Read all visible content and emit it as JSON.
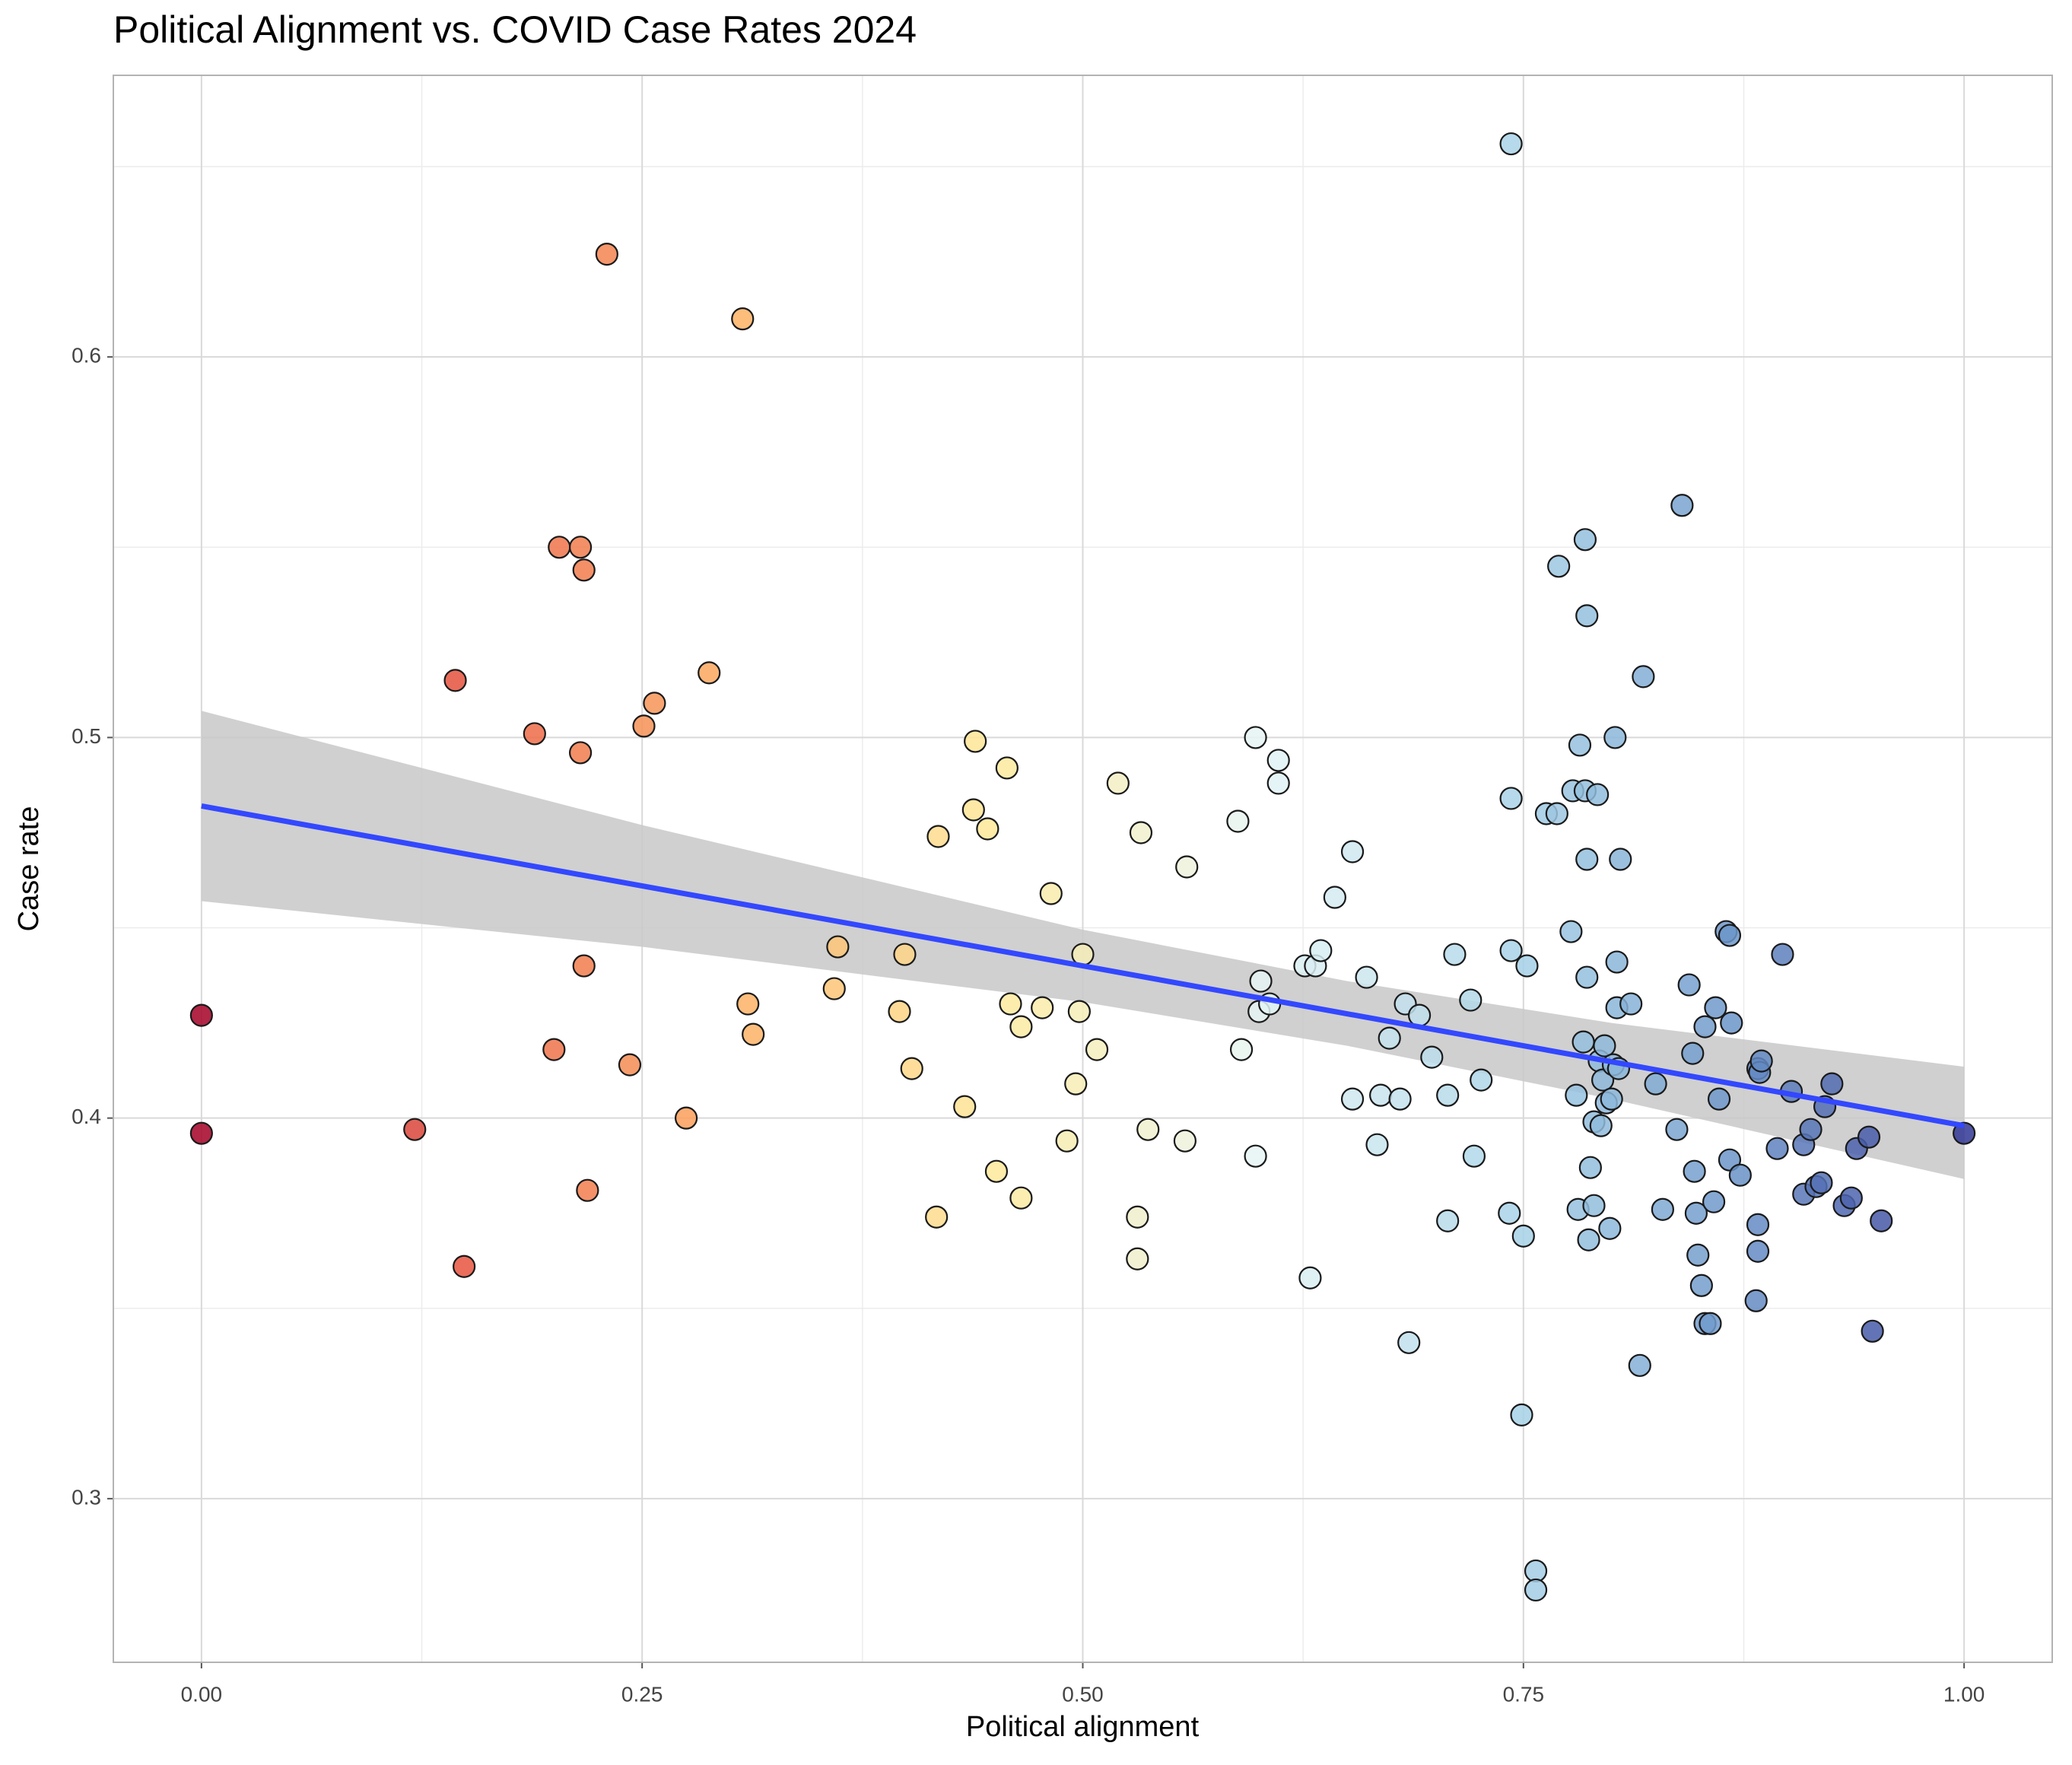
{
  "chart_data": {
    "type": "scatter",
    "title": "Political Alignment vs. COVID Case Rates 2024",
    "xlabel": "Political alignment",
    "ylabel": "Case rate",
    "x": [
      0,
      0,
      0.121,
      0.144,
      0.149,
      0.189,
      0.2,
      0.203,
      0.215,
      0.215,
      0.217,
      0.217,
      0.219,
      0.23,
      0.243,
      0.251,
      0.257,
      0.275,
      0.288,
      0.307,
      0.31,
      0.313,
      0.359,
      0.361,
      0.396,
      0.399,
      0.403,
      0.417,
      0.418,
      0.433,
      0.438,
      0.439,
      0.446,
      0.451,
      0.457,
      0.459,
      0.465,
      0.465,
      0.477,
      0.482,
      0.491,
      0.496,
      0.498,
      0.5,
      0.508,
      0.52,
      0.531,
      0.531,
      0.533,
      0.537,
      0.558,
      0.559,
      0.588,
      0.59,
      0.598,
      0.598,
      0.6,
      0.601,
      0.606,
      0.611,
      0.611,
      0.626,
      0.629,
      0.632,
      0.635,
      0.643,
      0.653,
      0.653,
      0.661,
      0.667,
      0.669,
      0.674,
      0.68,
      0.683,
      0.685,
      0.691,
      0.698,
      0.707,
      0.707,
      0.711,
      0.72,
      0.722,
      0.726,
      0.742,
      0.743,
      0.743,
      0.743,
      0.749,
      0.75,
      0.752,
      0.757,
      0.757,
      0.763,
      0.769,
      0.77,
      0.777,
      0.778,
      0.78,
      0.781,
      0.782,
      0.784,
      0.785,
      0.785,
      0.786,
      0.786,
      0.786,
      0.787,
      0.788,
      0.79,
      0.79,
      0.792,
      0.793,
      0.794,
      0.795,
      0.796,
      0.797,
      0.799,
      0.8,
      0.801,
      0.802,
      0.803,
      0.803,
      0.804,
      0.805,
      0.811,
      0.816,
      0.818,
      0.825,
      0.829,
      0.837,
      0.84,
      0.844,
      0.846,
      0.847,
      0.848,
      0.849,
      0.851,
      0.853,
      0.853,
      0.856,
      0.858,
      0.859,
      0.861,
      0.865,
      0.867,
      0.867,
      0.868,
      0.873,
      0.882,
      0.883,
      0.883,
      0.883,
      0.884,
      0.885,
      0.894,
      0.897,
      0.902,
      0.909,
      0.909,
      0.913,
      0.916,
      0.919,
      0.921,
      0.925,
      0.932,
      0.936,
      0.939,
      0.946,
      0.948,
      0.953,
      1.0
    ],
    "values": [
      0.427,
      0.396,
      0.397,
      0.515,
      0.361,
      0.501,
      0.418,
      0.55,
      0.55,
      0.496,
      0.544,
      0.44,
      0.381,
      0.627,
      0.414,
      0.503,
      0.509,
      0.4,
      0.517,
      0.61,
      0.43,
      0.422,
      0.434,
      0.445,
      0.428,
      0.443,
      0.413,
      0.374,
      0.474,
      0.403,
      0.481,
      0.499,
      0.476,
      0.386,
      0.492,
      0.43,
      0.379,
      0.424,
      0.429,
      0.459,
      0.394,
      0.409,
      0.428,
      0.443,
      0.418,
      0.488,
      0.363,
      0.374,
      0.475,
      0.397,
      0.394,
      0.466,
      0.478,
      0.418,
      0.5,
      0.39,
      0.428,
      0.436,
      0.43,
      0.494,
      0.488,
      0.44,
      0.358,
      0.44,
      0.444,
      0.458,
      0.47,
      0.405,
      0.437,
      0.393,
      0.406,
      0.421,
      0.405,
      0.43,
      0.341,
      0.427,
      0.416,
      0.373,
      0.406,
      0.443,
      0.431,
      0.39,
      0.41,
      0.375,
      0.444,
      0.484,
      0.656,
      0.322,
      0.369,
      0.44,
      0.281,
      0.276,
      0.48,
      0.48,
      0.545,
      0.449,
      0.486,
      0.406,
      0.376,
      0.498,
      0.42,
      0.486,
      0.552,
      0.532,
      0.468,
      0.437,
      0.368,
      0.387,
      0.377,
      0.399,
      0.485,
      0.415,
      0.398,
      0.41,
      0.419,
      0.404,
      0.371,
      0.405,
      0.414,
      0.5,
      0.441,
      0.429,
      0.413,
      0.468,
      0.43,
      0.335,
      0.516,
      0.409,
      0.376,
      0.397,
      0.561,
      0.435,
      0.417,
      0.386,
      0.375,
      0.364,
      0.356,
      0.424,
      0.346,
      0.346,
      0.378,
      0.429,
      0.405,
      0.449,
      0.448,
      0.389,
      0.425,
      0.385,
      0.352,
      0.365,
      0.372,
      0.413,
      0.412,
      0.415,
      0.392,
      0.443,
      0.407,
      0.38,
      0.393,
      0.397,
      0.382,
      0.383,
      0.403,
      0.409,
      0.377,
      0.379,
      0.392,
      0.395,
      0.344,
      0.373,
      0.396
    ],
    "colormap": {
      "values": [
        0,
        0.15,
        0.3,
        0.45,
        0.6,
        0.75,
        0.87,
        1
      ],
      "colors": [
        "#a50026",
        "#e8553f",
        "#fdae61",
        "#fee99a",
        "#e6f5f5",
        "#a6d1e6",
        "#6a94c8",
        "#313695"
      ]
    },
    "fit": {
      "color": "#3348ff",
      "x": [
        0,
        1
      ],
      "y": [
        0.482,
        0.398
      ]
    },
    "band": {
      "color": "#c8c8c8",
      "x": [
        0,
        0.25,
        0.5,
        0.65,
        0.8,
        1
      ],
      "lower": [
        0.457,
        0.445,
        0.4305,
        0.419,
        0.405,
        0.384
      ],
      "upper": [
        0.507,
        0.477,
        0.4495,
        0.436,
        0.425,
        0.4135
      ]
    },
    "xlim": [
      -0.05,
      1.05
    ],
    "ylim": [
      0.257,
      0.674
    ],
    "xticks": [
      {
        "value": 0,
        "label": "0.00"
      },
      {
        "value": 0.25,
        "label": "0.25"
      },
      {
        "value": 0.5,
        "label": "0.50"
      },
      {
        "value": 0.75,
        "label": "0.75"
      },
      {
        "value": 1,
        "label": "1.00"
      }
    ],
    "yticks": [
      0.3,
      0.4,
      0.5,
      0.6
    ],
    "xminor": [
      0.125,
      0.375,
      0.625,
      0.875
    ],
    "yminor": [
      0.35,
      0.45,
      0.55,
      0.65
    ],
    "grid": true
  }
}
